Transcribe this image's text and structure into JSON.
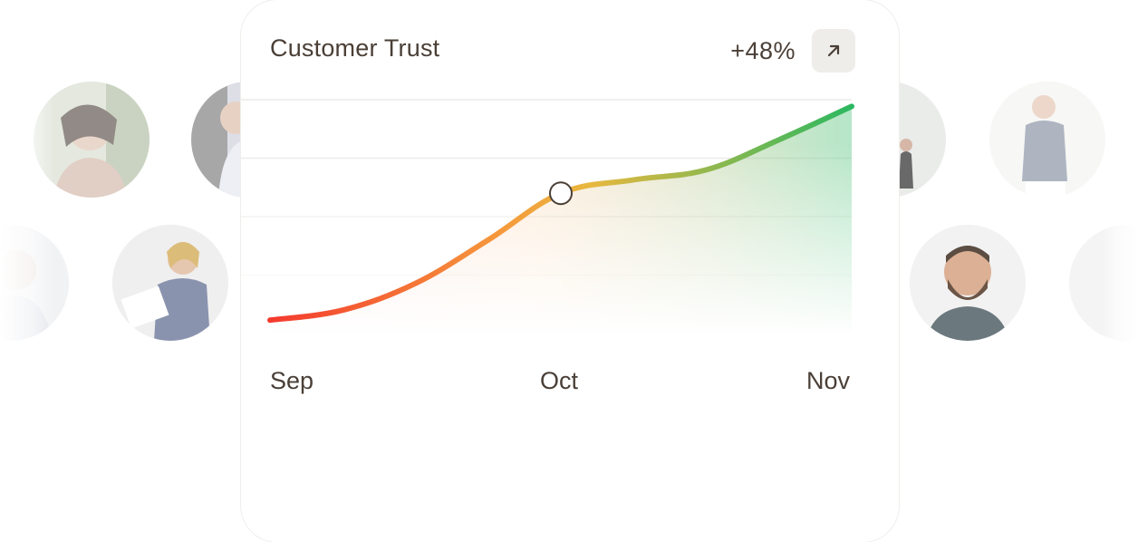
{
  "chart_data": {
    "type": "area",
    "title": "Customer Trust",
    "change": "+48%",
    "x_labels": [
      "Sep",
      "Oct",
      "Nov"
    ],
    "x": [
      0,
      0.25,
      0.5,
      0.75,
      1.0,
      1.25,
      1.5,
      1.75,
      2.0
    ],
    "values": [
      4,
      7,
      15,
      28,
      42,
      46,
      49,
      58,
      68
    ],
    "ylim": [
      0,
      70
    ],
    "highlight_index": 4,
    "gridlines": 5,
    "grid": true,
    "colors": {
      "start": "#f43a2e",
      "mid_orange": "#f59a3c",
      "mid_yellow": "#e8b83f",
      "end": "#2cb860",
      "text": "#4a3f37",
      "button_bg": "#efedea"
    }
  },
  "icons": {
    "expand": "arrow-up-right-icon"
  }
}
